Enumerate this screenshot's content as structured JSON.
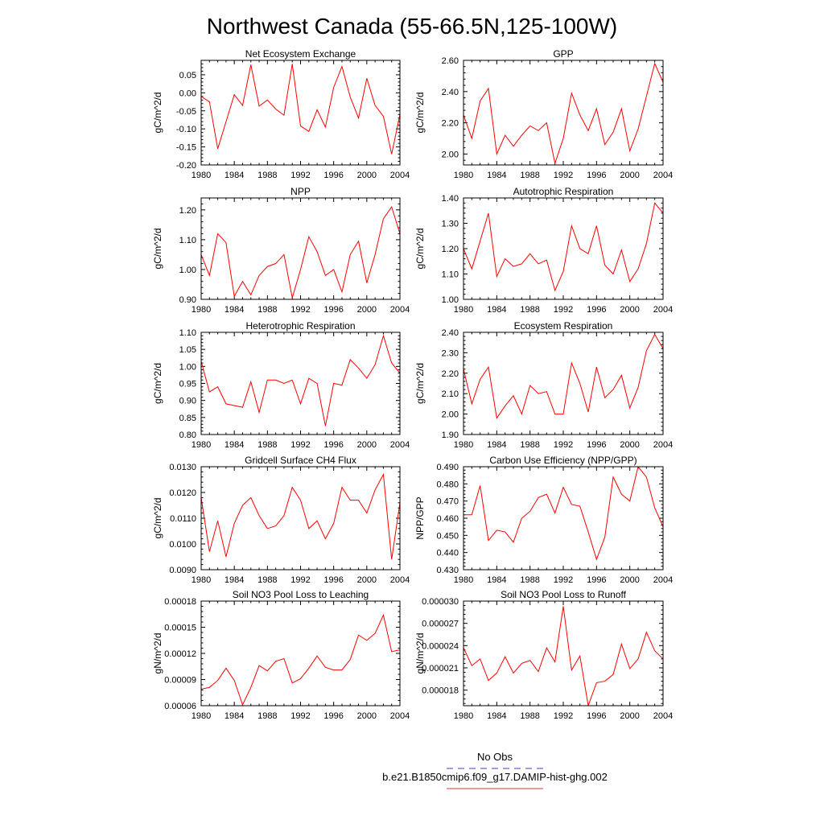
{
  "figure": {
    "title": "Northwest Canada (55-66.5N,125-100W)",
    "legend": [
      {
        "label": "No Obs",
        "color": "#3b3bd6",
        "dashed": true
      },
      {
        "label": "b.e21.B1850cmip6.f09_g17.DAMIP-hist-ghg.002",
        "color": "#e03030",
        "dashed": false
      }
    ],
    "line_color": "#ff0000"
  },
  "chart_data": [
    {
      "type": "line",
      "title": "Net Ecosystem Exchange",
      "ylabel": "gC/m^2/d",
      "xlim": [
        1980,
        2004
      ],
      "ylim": [
        -0.2,
        0.09
      ],
      "xticks": [
        "1980",
        "1984",
        "1988",
        "1992",
        "1996",
        "2000",
        "2004"
      ],
      "yticks": [
        "-0.20",
        "-0.15",
        "-0.10",
        "-0.05",
        "0.00",
        "0.05"
      ],
      "ytick_values": [
        -0.2,
        -0.15,
        -0.1,
        -0.05,
        0.0,
        0.05
      ],
      "x": [
        1980,
        1981,
        1982,
        1983,
        1984,
        1985,
        1986,
        1987,
        1988,
        1989,
        1990,
        1991,
        1992,
        1993,
        1994,
        1995,
        1996,
        1997,
        1998,
        1999,
        2000,
        2001,
        2002,
        2003,
        2004
      ],
      "y": [
        -0.01,
        -0.025,
        -0.155,
        -0.08,
        -0.005,
        -0.035,
        0.078,
        -0.037,
        -0.02,
        -0.045,
        -0.062,
        0.08,
        -0.092,
        -0.107,
        -0.047,
        -0.095,
        0.015,
        0.073,
        -0.012,
        -0.07,
        0.04,
        -0.035,
        -0.065,
        -0.17,
        -0.06
      ],
      "series": [
        {
          "name": "b.e21.B1850cmip6.f09_g17.DAMIP-hist-ghg.002"
        }
      ]
    },
    {
      "type": "line",
      "title": "GPP",
      "ylabel": "gC/m^2/d",
      "xlim": [
        1980,
        2004
      ],
      "ylim": [
        1.93,
        2.6
      ],
      "xticks": [
        "1980",
        "1984",
        "1988",
        "1992",
        "1996",
        "2000",
        "2004"
      ],
      "yticks": [
        "2.00",
        "2.20",
        "2.40",
        "2.60"
      ],
      "ytick_values": [
        2.0,
        2.2,
        2.4,
        2.6
      ],
      "x": [
        1980,
        1981,
        1982,
        1983,
        1984,
        1985,
        1986,
        1987,
        1988,
        1989,
        1990,
        1991,
        1992,
        1993,
        1994,
        1995,
        1996,
        1997,
        1998,
        1999,
        2000,
        2001,
        2002,
        2003,
        2004
      ],
      "y": [
        2.25,
        2.1,
        2.34,
        2.42,
        2.0,
        2.12,
        2.05,
        2.12,
        2.18,
        2.15,
        2.2,
        1.94,
        2.1,
        2.39,
        2.25,
        2.15,
        2.29,
        2.06,
        2.14,
        2.29,
        2.02,
        2.16,
        2.37,
        2.58,
        2.46
      ],
      "series": [
        {
          "name": "b.e21.B1850cmip6.f09_g17.DAMIP-hist-ghg.002"
        }
      ]
    },
    {
      "type": "line",
      "title": "NPP",
      "ylabel": "gC/m^2/d",
      "xlim": [
        1980,
        2004
      ],
      "ylim": [
        0.9,
        1.24
      ],
      "xticks": [
        "1980",
        "1984",
        "1988",
        "1992",
        "1996",
        "2000",
        "2004"
      ],
      "yticks": [
        "0.90",
        "1.00",
        "1.10",
        "1.20"
      ],
      "ytick_values": [
        0.9,
        1.0,
        1.1,
        1.2
      ],
      "x": [
        1980,
        1981,
        1982,
        1983,
        1984,
        1985,
        1986,
        1987,
        1988,
        1989,
        1990,
        1991,
        1992,
        1993,
        1994,
        1995,
        1996,
        1997,
        1998,
        1999,
        2000,
        2001,
        2002,
        2003,
        2004
      ],
      "y": [
        1.05,
        0.98,
        1.12,
        1.09,
        0.91,
        0.96,
        0.915,
        0.98,
        1.01,
        1.02,
        1.05,
        0.905,
        1.0,
        1.11,
        1.06,
        0.98,
        1.0,
        0.925,
        1.05,
        1.095,
        0.955,
        1.05,
        1.17,
        1.21,
        1.12
      ],
      "series": [
        {
          "name": "b.e21.B1850cmip6.f09_g17.DAMIP-hist-ghg.002"
        }
      ]
    },
    {
      "type": "line",
      "title": "Autotrophic Respiration",
      "ylabel": "gC/m^2/d",
      "xlim": [
        1980,
        2004
      ],
      "ylim": [
        1.0,
        1.4
      ],
      "xticks": [
        "1980",
        "1984",
        "1988",
        "1992",
        "1996",
        "2000",
        "2004"
      ],
      "yticks": [
        "1.00",
        "1.10",
        "1.20",
        "1.30",
        "1.40"
      ],
      "ytick_values": [
        1.0,
        1.1,
        1.2,
        1.3,
        1.4
      ],
      "x": [
        1980,
        1981,
        1982,
        1983,
        1984,
        1985,
        1986,
        1987,
        1988,
        1989,
        1990,
        1991,
        1992,
        1993,
        1994,
        1995,
        1996,
        1997,
        1998,
        1999,
        2000,
        2001,
        2002,
        2003,
        2004
      ],
      "y": [
        1.2,
        1.12,
        1.23,
        1.34,
        1.09,
        1.16,
        1.13,
        1.14,
        1.18,
        1.14,
        1.155,
        1.035,
        1.11,
        1.29,
        1.2,
        1.18,
        1.29,
        1.135,
        1.1,
        1.195,
        1.07,
        1.12,
        1.22,
        1.38,
        1.34
      ],
      "series": [
        {
          "name": "b.e21.B1850cmip6.f09_g17.DAMIP-hist-ghg.002"
        }
      ]
    },
    {
      "type": "line",
      "title": "Heterotrophic Respiration",
      "ylabel": "gC/m^2/d",
      "xlim": [
        1980,
        2004
      ],
      "ylim": [
        0.8,
        1.1
      ],
      "xticks": [
        "1980",
        "1984",
        "1988",
        "1992",
        "1996",
        "2000",
        "2004"
      ],
      "yticks": [
        "0.80",
        "0.85",
        "0.90",
        "0.95",
        "1.00",
        "1.05",
        "1.10"
      ],
      "ytick_values": [
        0.8,
        0.85,
        0.9,
        0.95,
        1.0,
        1.05,
        1.1
      ],
      "x": [
        1980,
        1981,
        1982,
        1983,
        1984,
        1985,
        1986,
        1987,
        1988,
        1989,
        1990,
        1991,
        1992,
        1993,
        1994,
        1995,
        1996,
        1997,
        1998,
        1999,
        2000,
        2001,
        2002,
        2003,
        2004
      ],
      "y": [
        1.015,
        0.925,
        0.94,
        0.89,
        0.885,
        0.88,
        0.955,
        0.865,
        0.96,
        0.96,
        0.95,
        0.96,
        0.89,
        0.965,
        0.95,
        0.825,
        0.95,
        0.945,
        1.02,
        0.995,
        0.965,
        1.005,
        1.09,
        1.01,
        0.98
      ],
      "series": [
        {
          "name": "b.e21.B1850cmip6.f09_g17.DAMIP-hist-ghg.002"
        }
      ]
    },
    {
      "type": "line",
      "title": "Ecosystem Respiration",
      "ylabel": "gC/m^2/d",
      "xlim": [
        1980,
        2004
      ],
      "ylim": [
        1.9,
        2.4
      ],
      "xticks": [
        "1980",
        "1984",
        "1988",
        "1992",
        "1996",
        "2000",
        "2004"
      ],
      "yticks": [
        "1.90",
        "2.00",
        "2.10",
        "2.20",
        "2.30",
        "2.40"
      ],
      "ytick_values": [
        1.9,
        2.0,
        2.1,
        2.2,
        2.3,
        2.4
      ],
      "x": [
        1980,
        1981,
        1982,
        1983,
        1984,
        1985,
        1986,
        1987,
        1988,
        1989,
        1990,
        1991,
        1992,
        1993,
        1994,
        1995,
        1996,
        1997,
        1998,
        1999,
        2000,
        2001,
        2002,
        2003,
        2004
      ],
      "y": [
        2.22,
        2.05,
        2.17,
        2.23,
        1.98,
        2.04,
        2.09,
        2.0,
        2.14,
        2.1,
        2.11,
        2.0,
        2.0,
        2.25,
        2.15,
        2.01,
        2.23,
        2.08,
        2.12,
        2.19,
        2.03,
        2.13,
        2.31,
        2.39,
        2.32
      ],
      "series": [
        {
          "name": "b.e21.B1850cmip6.f09_g17.DAMIP-hist-ghg.002"
        }
      ]
    },
    {
      "type": "line",
      "title": "Gridcell Surface CH4 Flux",
      "ylabel": "gC/m^2/d",
      "xlim": [
        1980,
        2004
      ],
      "ylim": [
        0.009,
        0.013
      ],
      "xticks": [
        "1980",
        "1984",
        "1988",
        "1992",
        "1996",
        "2000",
        "2004"
      ],
      "yticks": [
        "0.0090",
        "0.0100",
        "0.0110",
        "0.0120",
        "0.0130"
      ],
      "ytick_values": [
        0.009,
        0.01,
        0.011,
        0.012,
        0.013
      ],
      "x": [
        1980,
        1981,
        1982,
        1983,
        1984,
        1985,
        1986,
        1987,
        1988,
        1989,
        1990,
        1991,
        1992,
        1993,
        1994,
        1995,
        1996,
        1997,
        1998,
        1999,
        2000,
        2001,
        2002,
        2003,
        2004
      ],
      "y": [
        0.0118,
        0.0097,
        0.0109,
        0.0095,
        0.0108,
        0.0115,
        0.0118,
        0.0111,
        0.0106,
        0.0107,
        0.0111,
        0.0122,
        0.0117,
        0.0106,
        0.0109,
        0.0102,
        0.0108,
        0.0122,
        0.0117,
        0.0117,
        0.0112,
        0.0121,
        0.0127,
        0.0094,
        0.0116
      ],
      "series": [
        {
          "name": "b.e21.B1850cmip6.f09_g17.DAMIP-hist-ghg.002"
        }
      ]
    },
    {
      "type": "line",
      "title": "Carbon Use Efficiency (NPP/GPP)",
      "ylabel": "NPP/GPP",
      "xlim": [
        1980,
        2004
      ],
      "ylim": [
        0.43,
        0.49
      ],
      "xticks": [
        "1980",
        "1984",
        "1988",
        "1992",
        "1996",
        "2000",
        "2004"
      ],
      "yticks": [
        "0.430",
        "0.440",
        "0.450",
        "0.460",
        "0.470",
        "0.480",
        "0.490"
      ],
      "ytick_values": [
        0.43,
        0.44,
        0.45,
        0.46,
        0.47,
        0.48,
        0.49
      ],
      "x": [
        1980,
        1981,
        1982,
        1983,
        1984,
        1985,
        1986,
        1987,
        1988,
        1989,
        1990,
        1991,
        1992,
        1993,
        1994,
        1995,
        1996,
        1997,
        1998,
        1999,
        2000,
        2001,
        2002,
        2003,
        2004
      ],
      "y": [
        0.462,
        0.462,
        0.479,
        0.447,
        0.453,
        0.452,
        0.446,
        0.46,
        0.464,
        0.472,
        0.474,
        0.463,
        0.478,
        0.468,
        0.467,
        0.452,
        0.436,
        0.449,
        0.484,
        0.474,
        0.47,
        0.49,
        0.484,
        0.466,
        0.455
      ],
      "series": [
        {
          "name": "b.e21.B1850cmip6.f09_g17.DAMIP-hist-ghg.002"
        }
      ]
    },
    {
      "type": "line",
      "title": "Soil NO3 Pool Loss to Leaching",
      "ylabel": "gN/m^2/d",
      "xlim": [
        1980,
        2004
      ],
      "ylim": [
        6e-05,
        0.00018
      ],
      "xticks": [
        "1980",
        "1984",
        "1988",
        "1992",
        "1996",
        "2000",
        "2004"
      ],
      "yticks": [
        "0.00006",
        "0.00009",
        "0.00012",
        "0.00015",
        "0.00018"
      ],
      "ytick_values": [
        6e-05,
        9e-05,
        0.00012,
        0.00015,
        0.00018
      ],
      "x": [
        1980,
        1981,
        1982,
        1983,
        1984,
        1985,
        1986,
        1987,
        1988,
        1989,
        1990,
        1991,
        1992,
        1993,
        1994,
        1995,
        1996,
        1997,
        1998,
        1999,
        2000,
        2001,
        2002,
        2003,
        2004
      ],
      "y": [
        7.9e-05,
        8.1e-05,
        8.9e-05,
        0.000103,
        8.9e-05,
        6.1e-05,
        8.1e-05,
        0.000106,
        0.0001,
        0.000111,
        0.000114,
        8.6e-05,
        9.1e-05,
        0.000103,
        0.000117,
        0.000104,
        0.000101,
        0.000101,
        0.000113,
        0.000141,
        0.000135,
        0.000143,
        0.000164,
        0.000122,
        0.000124
      ],
      "series": [
        {
          "name": "b.e21.B1850cmip6.f09_g17.DAMIP-hist-ghg.002"
        }
      ]
    },
    {
      "type": "line",
      "title": "Soil NO3 Pool Loss to Runoff",
      "ylabel": "gN/m^2/d",
      "xlim": [
        1980,
        2004
      ],
      "ylim": [
        1.59e-05,
        3e-05
      ],
      "xticks": [
        "1980",
        "1984",
        "1988",
        "1992",
        "1996",
        "2000",
        "2004"
      ],
      "yticks": [
        "0.000018",
        "0.000021",
        "0.000024",
        "0.000027",
        "0.000030"
      ],
      "ytick_values": [
        1.8e-05,
        2.1e-05,
        2.4e-05,
        2.7e-05,
        3e-05
      ],
      "x": [
        1980,
        1981,
        1982,
        1983,
        1984,
        1985,
        1986,
        1987,
        1988,
        1989,
        1990,
        1991,
        1992,
        1993,
        1994,
        1995,
        1996,
        1997,
        1998,
        1999,
        2000,
        2001,
        2002,
        2003,
        2004
      ],
      "y": [
        2.37e-05,
        2.13e-05,
        2.22e-05,
        1.93e-05,
        2.03e-05,
        2.25e-05,
        2.03e-05,
        2.16e-05,
        2.2e-05,
        2.05e-05,
        2.37e-05,
        2.18e-05,
        2.93e-05,
        2.07e-05,
        2.26e-05,
        1.59e-05,
        1.9e-05,
        1.92e-05,
        2.01e-05,
        2.42e-05,
        2.09e-05,
        2.22e-05,
        2.58e-05,
        2.33e-05,
        2.22e-05
      ],
      "series": [
        {
          "name": "b.e21.B1850cmip6.f09_g17.DAMIP-hist-ghg.002"
        }
      ]
    }
  ]
}
